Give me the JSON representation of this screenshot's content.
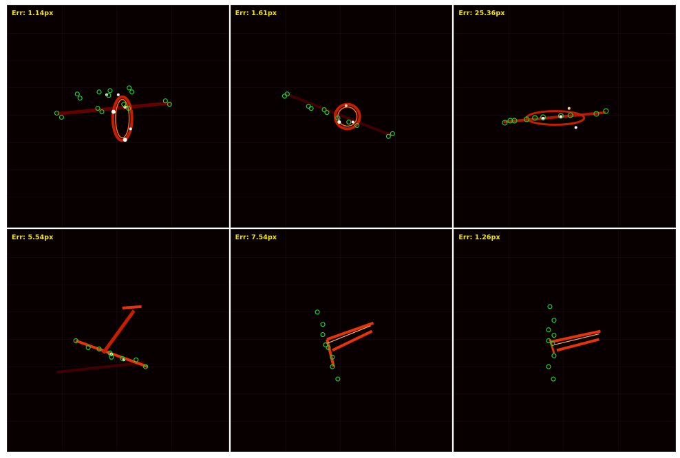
{
  "panels": [
    {
      "label": "Err: 1.14px"
    },
    {
      "label": "Err: 1.61px"
    },
    {
      "label": "Err: 25.36px"
    },
    {
      "label": "Err: 5.54px"
    },
    {
      "label": "Err: 7.54px"
    },
    {
      "label": "Err: 1.26px"
    }
  ],
  "colors": {
    "background": "#080000",
    "heat_low": "#7a0000",
    "heat_mid": "#e8320a",
    "heat_high": "#ffffff",
    "marker": "#22cc33",
    "label": "#f2e600"
  }
}
